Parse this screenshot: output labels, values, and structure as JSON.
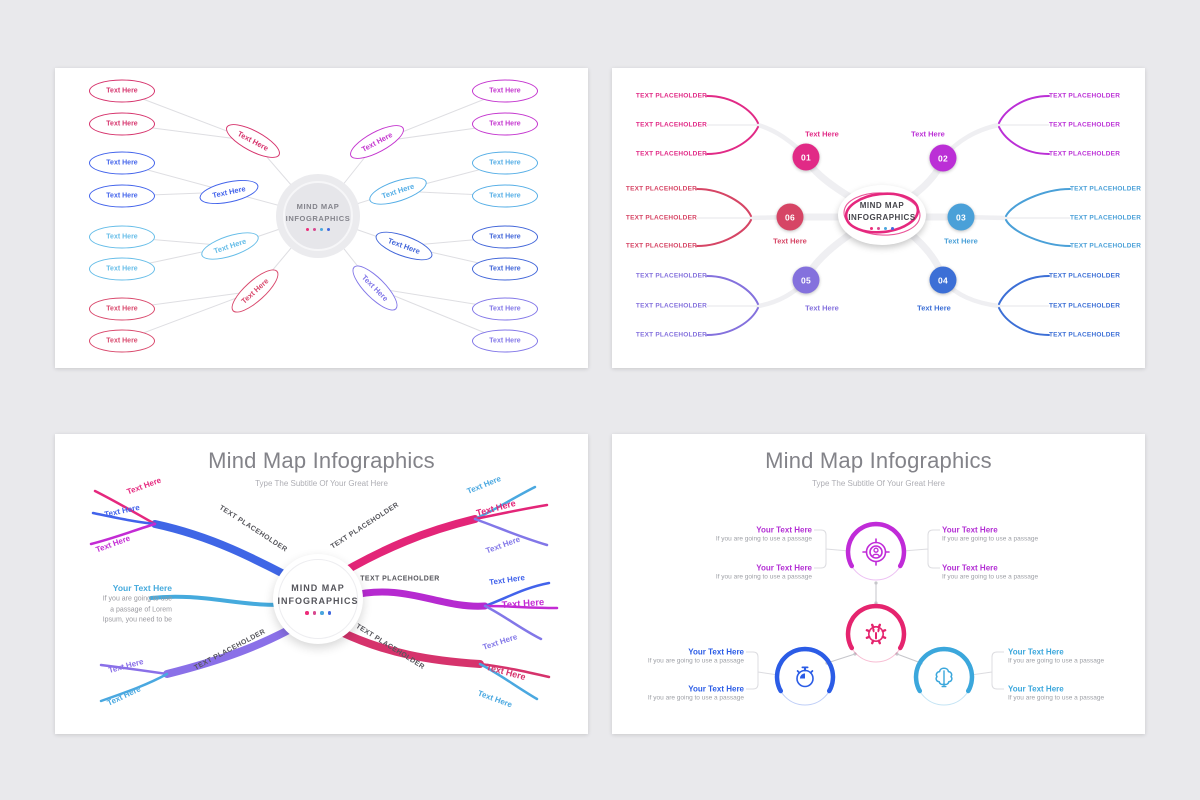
{
  "page": {
    "background_color": "#e9e9ec",
    "slide_background": "#ffffff"
  },
  "shared": {
    "center_line1": "MIND MAP",
    "center_line2": "INFOGRAPHICS",
    "node_label": "Text Here",
    "placeholder_label": "TEXT PLACEHOLDER",
    "your_text_label": "Your Text Here",
    "dot_colors": [
      "#ed2c7a",
      "#d8488f",
      "#4aa6de",
      "#4169df"
    ]
  },
  "slide1": {
    "name": "radial-ellipse-mind-map",
    "group_colors": [
      "#d6336c",
      "#4263eb",
      "#66bde8",
      "#d9486c",
      "#c436cf",
      "#55aee6",
      "#4165d9",
      "#8277e8"
    ]
  },
  "slide2": {
    "name": "numbered-branch-mind-map",
    "numbers": [
      "01",
      "02",
      "03",
      "04",
      "05",
      "06"
    ],
    "group_colors": [
      "#e12a86",
      "#bb2fd6",
      "#4aa0d8",
      "#3c6fd6",
      "#8471dd",
      "#d64565"
    ],
    "ring_color": "#e5287e"
  },
  "slide3": {
    "name": "curved-ribbon-mind-map",
    "title": "Mind Map Infographics",
    "subtitle": "Type The Subtitle Of Your Great Here",
    "placeholder_color": "#56565c",
    "paragraph_lines": [
      "If you are going to use",
      "a passage of Lorem",
      "Ipsum, you need to be"
    ],
    "paragraph_title_color": "#45aadd",
    "branches": {
      "upper_left": {
        "main": "#3f66e6",
        "subs": [
          "#e5287e",
          "#4263eb",
          "#c32bd4"
        ]
      },
      "middle_left": {
        "main": "#45aadd",
        "subs": []
      },
      "lower_left": {
        "main": "#8a70e8",
        "subs": [
          "#8a70e8",
          "#4aa8e0"
        ]
      },
      "upper_right": {
        "main": "#e32578",
        "subs": [
          "#4aa8e0",
          "#e32578",
          "#8277e8"
        ]
      },
      "middle_right": {
        "main": "#b62ad0",
        "subs": [
          "#4263eb",
          "#c32bd4",
          "#8277e8"
        ]
      },
      "lower_right": {
        "main": "#d6336c",
        "subs": [
          "#d6336c",
          "#4aa8e0"
        ]
      }
    }
  },
  "slide4": {
    "name": "icon-node-mind-map",
    "title": "Mind Map Infographics",
    "subtitle": "Type The Subtitle Of Your Great Here",
    "caption": "If you are going to use a passage",
    "node_colors": [
      "#c02bd8",
      "#e5246e",
      "#2b5ce6",
      "#3ba7dc"
    ],
    "label_colors": [
      "#b32fd4",
      "#b32fd4",
      "#2b5ce6",
      "#3ba7dc"
    ],
    "icons": [
      "target-user-icon",
      "gear-wrench-icon",
      "stopwatch-icon",
      "brain-lightbulb-icon"
    ]
  }
}
